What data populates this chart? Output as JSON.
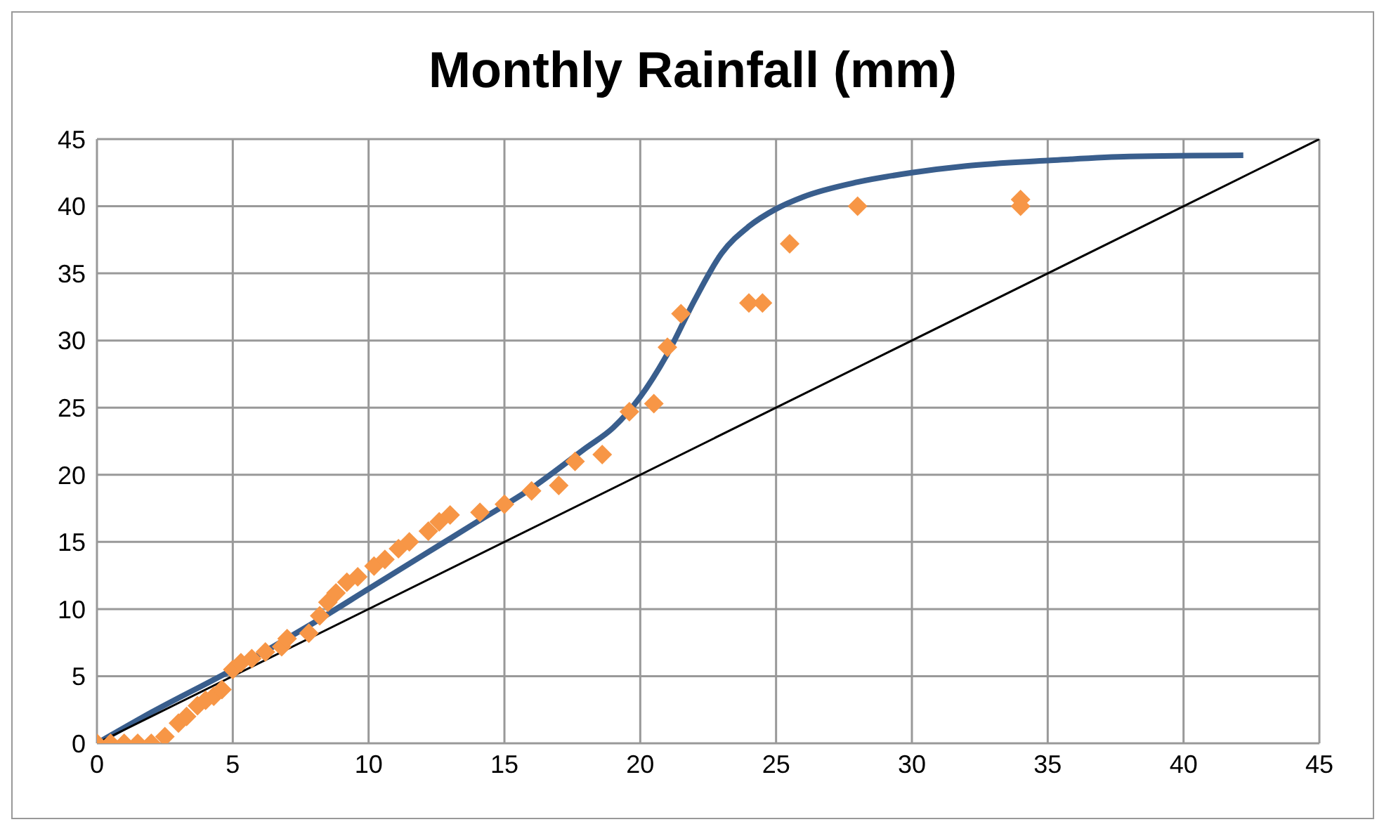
{
  "chart_data": {
    "type": "scatter",
    "title": "Monthly Rainfall (mm)",
    "xlim": [
      0,
      45
    ],
    "xticks": [
      0,
      5,
      10,
      15,
      20,
      25,
      30,
      35,
      40,
      45
    ],
    "ylim": [
      0,
      45
    ],
    "yticks": [
      0,
      5,
      10,
      15,
      20,
      25,
      30,
      35,
      40,
      45
    ],
    "grid": true,
    "legend": false,
    "series": [
      {
        "color": "#f79646",
        "marker": "diamond",
        "x": [
          0,
          0.5,
          1,
          1.5,
          2,
          2.5,
          3,
          3.3,
          3.7,
          4,
          4.3,
          4.6,
          5,
          5.3,
          5.7,
          6.2,
          6.8,
          7,
          7.8,
          8.2,
          8.5,
          8.8,
          9.2,
          9.6,
          10.2,
          10.6,
          11.1,
          11.5,
          12.2,
          12.6,
          13,
          14.1,
          15,
          16,
          17,
          17.6,
          18.6,
          19.6,
          20.5,
          21,
          21.5,
          24,
          24.5,
          25.5,
          28,
          34,
          34
        ],
        "values": [
          0,
          0,
          0,
          0,
          0,
          0.5,
          1.5,
          2,
          2.8,
          3.2,
          3.5,
          4,
          5.5,
          6,
          6.3,
          6.8,
          7.2,
          7.8,
          8.2,
          9.5,
          10.5,
          11.2,
          12,
          12.4,
          13.2,
          13.7,
          14.5,
          15,
          15.8,
          16.5,
          17,
          17.2,
          17.8,
          18.8,
          19.2,
          21,
          21.5,
          24.7,
          25.3,
          29.5,
          32,
          32.8,
          32.8,
          37.2,
          40,
          40.5,
          40
        ]
      },
      {
        "type": "line",
        "color": "#395e8d",
        "marker": "none",
        "x": [
          0,
          2,
          5,
          8,
          10,
          12,
          14,
          16,
          18,
          19,
          20,
          21,
          22,
          23,
          24,
          25,
          26,
          28,
          30,
          32,
          35,
          38,
          42.2
        ],
        "values": [
          0,
          2.3,
          5.5,
          9,
          11.5,
          14,
          16.5,
          19,
          22,
          23.5,
          25.8,
          29,
          33,
          36.5,
          38.5,
          39.8,
          40.7,
          41.8,
          42.5,
          43,
          43.4,
          43.7,
          43.8
        ]
      },
      {
        "type": "line",
        "color": "#000000",
        "marker": "none",
        "x": [
          0,
          45
        ],
        "values": [
          0,
          45
        ]
      }
    ]
  }
}
